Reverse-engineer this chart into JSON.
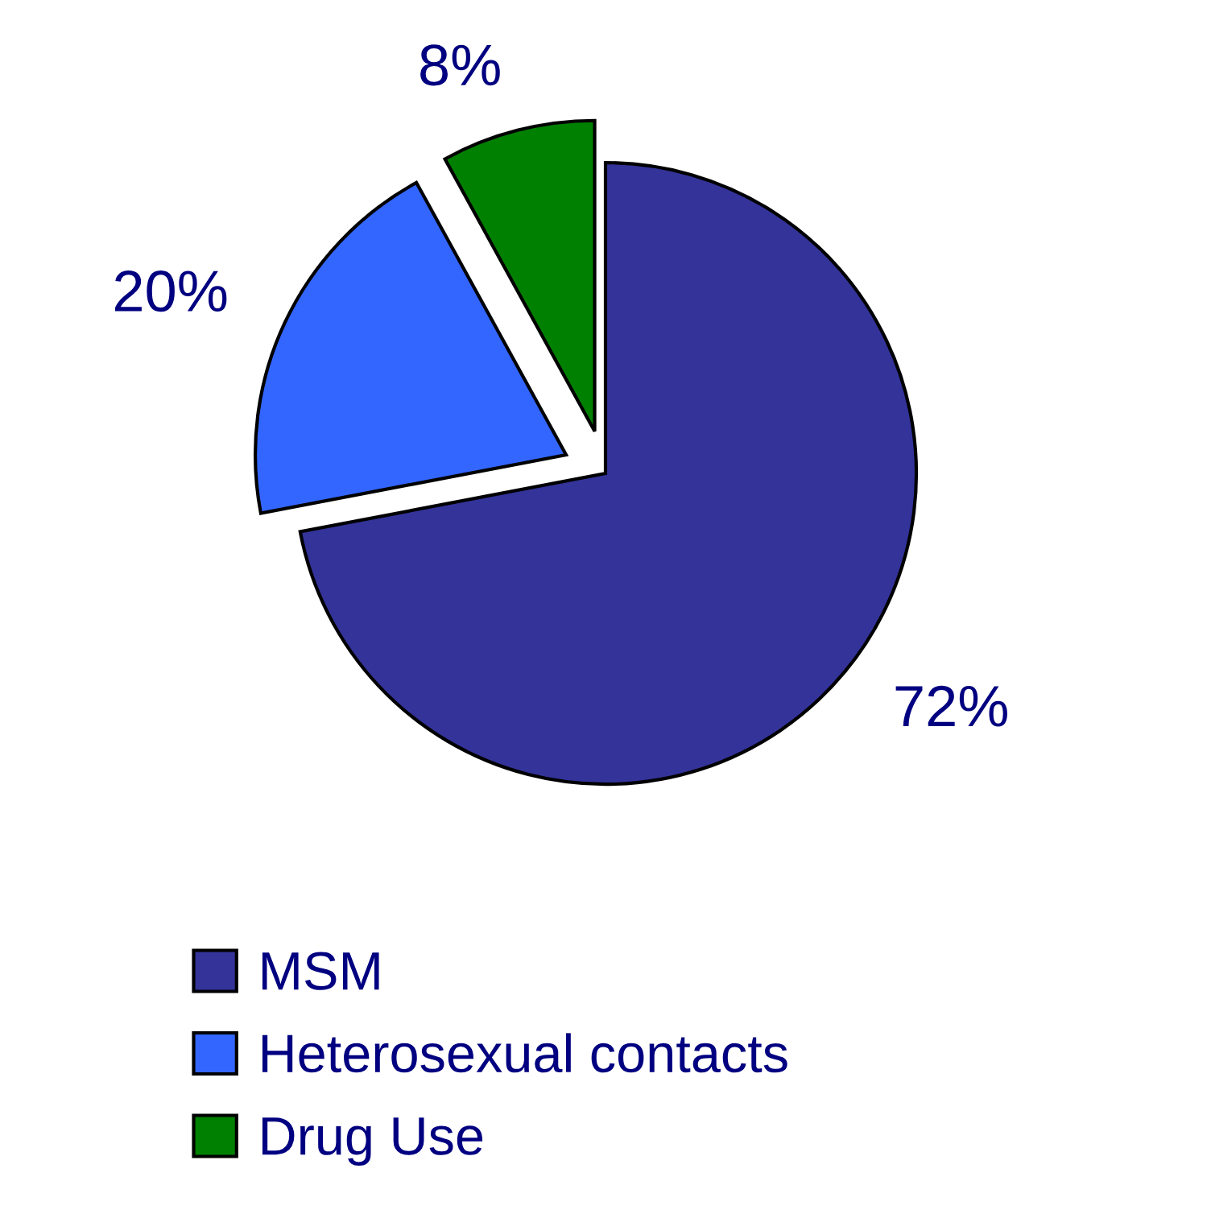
{
  "chart_data": {
    "type": "pie",
    "categories": [
      "MSM",
      "Heterosexual contacts",
      "Drug Use"
    ],
    "values": [
      72,
      20,
      8
    ],
    "colors": [
      "#333399",
      "#3366ff",
      "#008000"
    ],
    "value_labels": [
      "72%",
      "20%",
      "8%"
    ],
    "legend": "bottom"
  }
}
